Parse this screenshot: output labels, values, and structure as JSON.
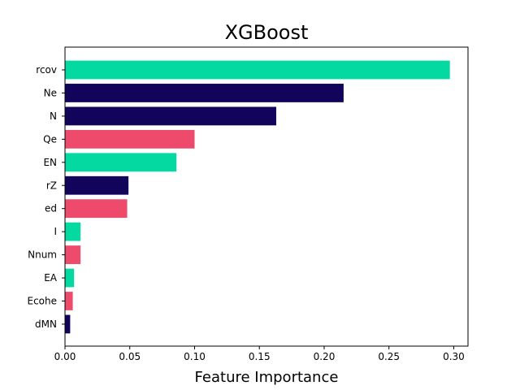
{
  "chart_data": {
    "type": "bar",
    "orientation": "horizontal",
    "title": "XGBoost",
    "xlabel": "Feature Importance",
    "ylabel": "",
    "xlim": [
      0,
      0.311
    ],
    "xticks": [
      0,
      0.05,
      0.1,
      0.15,
      0.2,
      0.25,
      0.3
    ],
    "xtick_labels": [
      "0.00",
      "0.05",
      "0.10",
      "0.15",
      "0.20",
      "0.25",
      "0.30"
    ],
    "grid": false,
    "categories": [
      "rcov",
      "Ne",
      "N",
      "Qe",
      "EN",
      "rZ",
      "ed",
      "I",
      "Nnum",
      "EA",
      "Ecohe",
      "dMN"
    ],
    "values": [
      0.297,
      0.215,
      0.163,
      0.1,
      0.086,
      0.049,
      0.048,
      0.012,
      0.012,
      0.007,
      0.006,
      0.004
    ],
    "colors": [
      "#05d9a2",
      "#12045a",
      "#12045a",
      "#ee4a6b",
      "#05d9a2",
      "#12045a",
      "#ee4a6b",
      "#05d9a2",
      "#ee4a6b",
      "#05d9a2",
      "#ee4a6b",
      "#12045a"
    ]
  }
}
